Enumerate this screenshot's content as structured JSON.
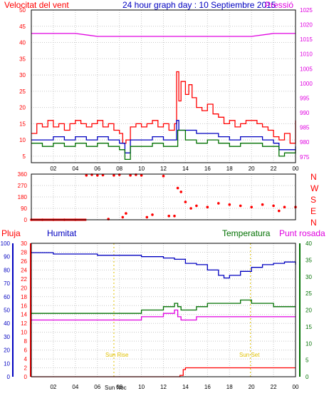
{
  "header": {
    "title": "24 hour graph day : 10 Septiembre 2015",
    "wind_label": "Velocitat del vent",
    "pressure_label": "Pressió"
  },
  "legend": {
    "rain": "Pluja",
    "humidity": "Humitat",
    "temperature": "Temperatura",
    "dewpoint": "Punt rosada"
  },
  "annotations": {
    "sunrise": "Sun Rise",
    "sunset": "Sun Set",
    "noon": "Sun Noc"
  },
  "colors": {
    "red": "#ff0000",
    "blue": "#0000c0",
    "green": "#007000",
    "magenta": "#e000e0",
    "yellow": "#e0c000",
    "grid": "#c8c8c8"
  },
  "chart_data": [
    {
      "type": "line",
      "id": "wind-pressure",
      "x_ticks": [
        "02",
        "04",
        "06",
        "08",
        "10",
        "12",
        "14",
        "16",
        "18",
        "20",
        "22",
        "00"
      ],
      "xlim": [
        0,
        24
      ],
      "left_axis": {
        "ticks": [
          5,
          10,
          15,
          20,
          25,
          30,
          35,
          40,
          45,
          50
        ],
        "ylim": [
          3,
          50
        ]
      },
      "right_axis": {
        "ticks": [
          975,
          980,
          985,
          990,
          995,
          1000,
          1005,
          1010,
          1015,
          1020,
          1025
        ],
        "ylim": [
          973,
          1025
        ]
      },
      "series": [
        {
          "role": "gust",
          "color": "red",
          "x": [
            0,
            0.5,
            1,
            1.5,
            2,
            2.5,
            3,
            3.5,
            4,
            4.5,
            5,
            5.5,
            6,
            6.5,
            7,
            7.5,
            8,
            8.3,
            8.6,
            9,
            9.5,
            10,
            10.5,
            11,
            11.5,
            12,
            12.5,
            13,
            13.2,
            13.4,
            13.6,
            14,
            14.3,
            14.6,
            15,
            15.5,
            16,
            16.5,
            17,
            17.5,
            18,
            18.5,
            19,
            19.5,
            20,
            20.5,
            21,
            21.5,
            22,
            22.5,
            23,
            23.5,
            24
          ],
          "y": [
            12,
            15,
            14,
            16,
            14,
            15,
            13,
            15,
            16,
            15,
            14,
            15,
            16,
            14,
            15,
            13,
            12,
            9,
            10,
            14,
            15,
            14,
            15,
            16,
            14,
            15,
            13,
            15,
            31,
            22,
            28,
            24,
            27,
            23,
            20,
            19,
            21,
            18,
            17,
            15,
            16,
            14,
            15,
            16,
            16,
            15,
            14,
            13,
            11,
            10,
            12,
            9,
            16
          ]
        },
        {
          "role": "average",
          "color": "blue",
          "x": [
            0,
            1,
            2,
            3,
            4,
            5,
            6,
            7,
            8,
            8.5,
            9,
            10,
            11,
            12,
            13,
            13.2,
            13.4,
            14,
            15,
            16,
            17,
            18,
            19,
            20,
            21,
            22,
            22.5,
            23,
            24
          ],
          "y": [
            10,
            10,
            11,
            10,
            11,
            10,
            11,
            10,
            9,
            6,
            10,
            10,
            11,
            10,
            10,
            16,
            13,
            13,
            12,
            12,
            11,
            10,
            11,
            11,
            10,
            9,
            7,
            7,
            8
          ]
        },
        {
          "role": "minimum",
          "color": "green",
          "x": [
            0,
            1,
            2,
            3,
            4,
            5,
            6,
            7,
            8,
            8.5,
            9,
            10,
            11,
            12,
            13,
            13.3,
            14,
            15,
            16,
            17,
            18,
            19,
            20,
            21,
            22,
            22.5,
            23,
            24
          ],
          "y": [
            9,
            8,
            9,
            8,
            9,
            8,
            9,
            8,
            7,
            4,
            8,
            8,
            9,
            8,
            8,
            13,
            10,
            9,
            10,
            9,
            8,
            9,
            9,
            8,
            8,
            5,
            6,
            7
          ]
        },
        {
          "role": "pressure",
          "color": "magenta",
          "x": [
            0,
            2,
            4,
            6,
            8,
            10,
            12,
            14,
            16,
            18,
            20,
            22,
            24
          ],
          "y": [
            1017,
            1017,
            1017,
            1016,
            1016,
            1016,
            1016,
            1016,
            1016,
            1016,
            1016,
            1017,
            1017
          ]
        }
      ]
    },
    {
      "type": "scatter",
      "id": "wind-direction",
      "x_ticks": [
        "02",
        "04",
        "06",
        "08",
        "10",
        "12",
        "14",
        "16",
        "18",
        "20",
        "22",
        "00"
      ],
      "xlim": [
        0,
        24
      ],
      "y_ticks": [
        0,
        90,
        180,
        270,
        360
      ],
      "right_labels": [
        "N",
        "W",
        "S",
        "E",
        "N"
      ],
      "ylim": [
        0,
        360
      ],
      "series": [
        {
          "role": "direction",
          "color": "red",
          "x": [
            0,
            1,
            2,
            3,
            4,
            5,
            5.5,
            6,
            6.5,
            7,
            7.5,
            8,
            8.3,
            8.6,
            9,
            9.5,
            10,
            10.5,
            11,
            12,
            12.5,
            13,
            13.3,
            13.6,
            14,
            14.5,
            15,
            16,
            17,
            18,
            19,
            20,
            21,
            22,
            22.5,
            23,
            24
          ],
          "y": [
            0,
            0,
            0,
            0,
            0,
            350,
            355,
            350,
            352,
            5,
            350,
            355,
            20,
            50,
            350,
            355,
            350,
            20,
            40,
            345,
            30,
            30,
            250,
            220,
            140,
            90,
            110,
            100,
            130,
            120,
            110,
            100,
            120,
            110,
            70,
            100,
            100
          ]
        }
      ]
    },
    {
      "type": "line",
      "id": "temperature-humidity",
      "x_ticks": [
        "02",
        "04",
        "06",
        "08",
        "10",
        "12",
        "14",
        "16",
        "18",
        "20",
        "22",
        "00"
      ],
      "xlim": [
        0,
        24
      ],
      "humidity_axis": {
        "ticks": [
          0,
          10,
          20,
          30,
          40,
          50,
          60,
          70,
          80,
          90,
          100
        ],
        "ylim": [
          0,
          100
        ]
      },
      "rain_axis": {
        "ticks": [
          0,
          2,
          4,
          6,
          8,
          10,
          12,
          14,
          16,
          18,
          20,
          22,
          24,
          26,
          28,
          30
        ],
        "ylim": [
          0,
          30
        ]
      },
      "temp_axis": {
        "ticks": [
          0,
          5,
          10,
          15,
          20,
          25,
          30,
          35,
          40
        ],
        "ylim": [
          0,
          40
        ]
      },
      "series": [
        {
          "name": "Humitat",
          "color": "blue",
          "axis": "humidity",
          "x": [
            0,
            1,
            2,
            4,
            6,
            8,
            10,
            12,
            13,
            13.5,
            14,
            15,
            16,
            17,
            17.5,
            18,
            19,
            20,
            21,
            22,
            23,
            24
          ],
          "y": [
            93,
            93,
            92,
            92,
            91,
            91,
            90,
            89,
            88,
            88,
            85,
            84,
            80,
            76,
            74,
            76,
            79,
            82,
            84,
            85,
            86,
            84
          ]
        },
        {
          "name": "Temperatura",
          "color": "green",
          "axis": "temp",
          "x": [
            0,
            2,
            4,
            6,
            8,
            10,
            11,
            12,
            13,
            13.3,
            13.6,
            14,
            15,
            16,
            17,
            18,
            19,
            20,
            21,
            22,
            23,
            24
          ],
          "y": [
            19,
            19,
            19,
            19,
            19,
            20,
            20,
            21,
            22,
            21,
            20,
            20,
            21,
            22,
            22,
            22,
            23,
            22,
            22,
            21,
            21,
            21
          ]
        },
        {
          "name": "Punt rosada",
          "color": "magenta",
          "axis": "temp",
          "x": [
            0,
            2,
            4,
            6,
            8,
            10,
            11,
            12,
            13,
            13.3,
            13.6,
            14,
            15,
            16,
            17,
            18,
            19,
            20,
            21,
            22,
            23,
            24
          ],
          "y": [
            17,
            17,
            17,
            17,
            17,
            18,
            18,
            19,
            20,
            18,
            17,
            17,
            18,
            18,
            18,
            18,
            18,
            18,
            18,
            18,
            18,
            18
          ]
        },
        {
          "name": "Pluja",
          "color": "red",
          "axis": "rain",
          "x": [
            0,
            2,
            4,
            6,
            8,
            10,
            12,
            13,
            13.5,
            13.8,
            14,
            16,
            18,
            20,
            22,
            24
          ],
          "y": [
            0,
            0,
            0,
            0,
            0,
            0,
            0,
            0,
            0.3,
            1.6,
            2,
            2,
            2,
            2,
            2,
            2
          ]
        }
      ]
    }
  ]
}
